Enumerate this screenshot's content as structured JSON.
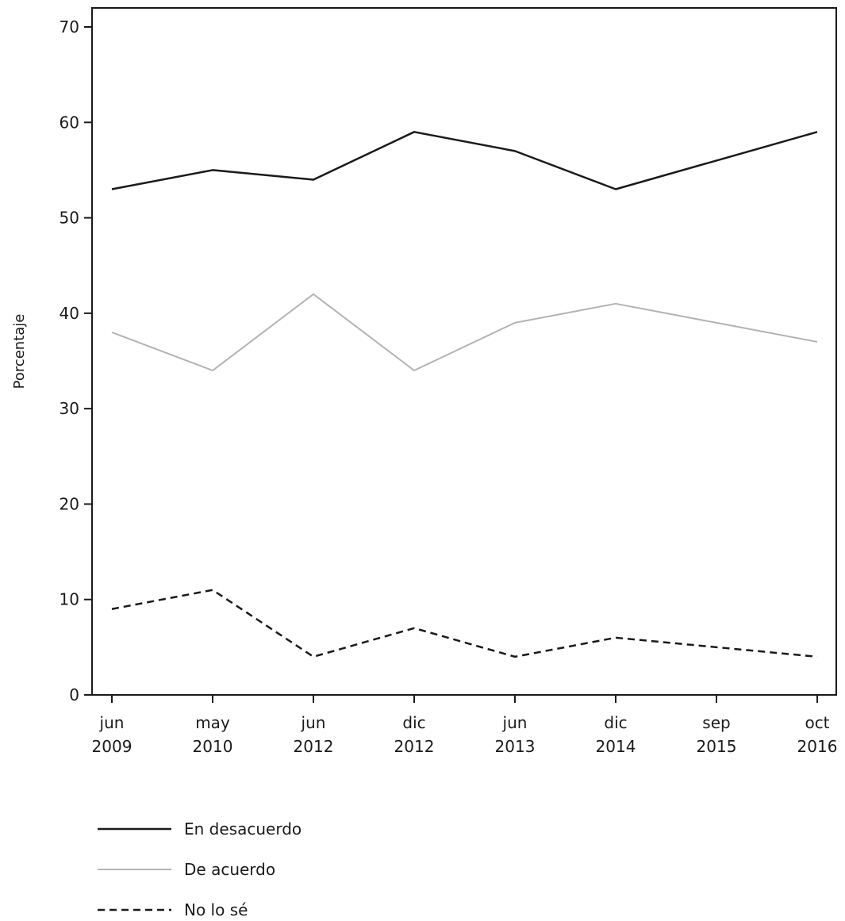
{
  "chart_data": {
    "type": "line",
    "title": "",
    "xlabel": "",
    "ylabel": "Porcentaje",
    "ylim": [
      0,
      70
    ],
    "yticks": [
      0,
      10,
      20,
      30,
      40,
      50,
      60,
      70
    ],
    "grid": false,
    "legend_position": "bottom-left",
    "categories": [
      {
        "month": "jun",
        "year": "2009"
      },
      {
        "month": "may",
        "year": "2010"
      },
      {
        "month": "jun",
        "year": "2012"
      },
      {
        "month": "dic",
        "year": "2012"
      },
      {
        "month": "jun",
        "year": "2013"
      },
      {
        "month": "dic",
        "year": "2014"
      },
      {
        "month": "sep",
        "year": "2015"
      },
      {
        "month": "oct",
        "year": "2016"
      }
    ],
    "series": [
      {
        "name": "En desacuerdo",
        "color": "#1a1a1a",
        "style": "solid",
        "values": [
          53,
          55,
          54,
          59,
          57,
          53,
          56,
          59
        ]
      },
      {
        "name": "De acuerdo",
        "color": "#b3b3b3",
        "style": "solid",
        "values": [
          38,
          34,
          42,
          34,
          39,
          41,
          39,
          37
        ]
      },
      {
        "name": "No lo sé",
        "color": "#1a1a1a",
        "style": "dashed",
        "values": [
          9,
          11,
          4,
          7,
          4,
          6,
          5,
          4
        ]
      }
    ]
  }
}
